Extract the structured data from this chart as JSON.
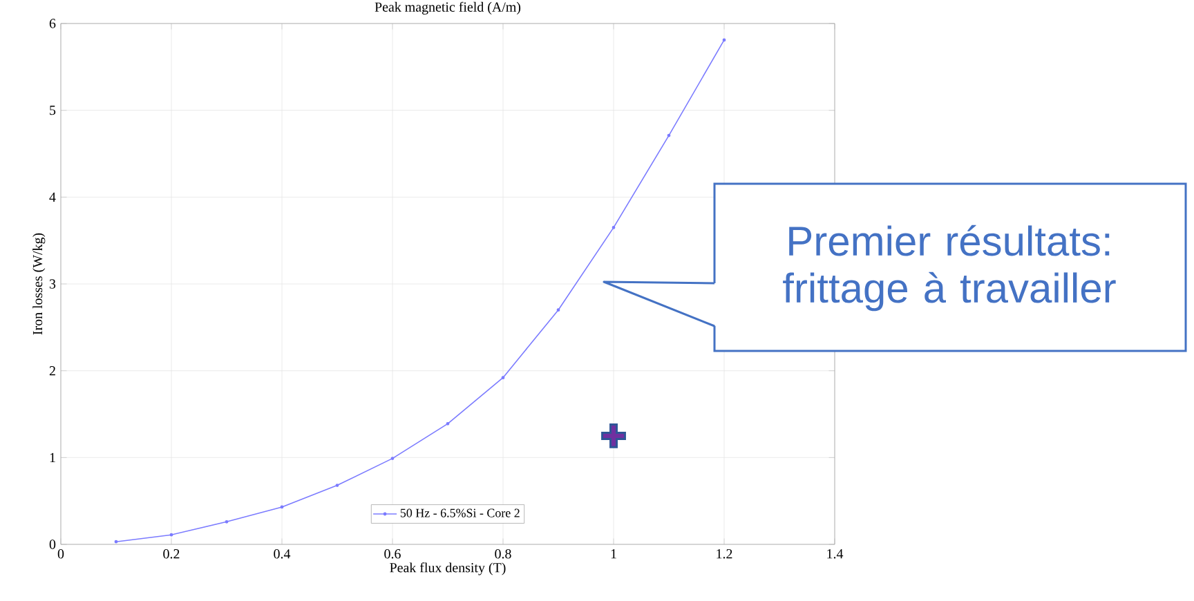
{
  "chart_data": {
    "type": "line",
    "title": "Peak magnetic field (A/m)",
    "xlabel": "Peak flux density (T)",
    "ylabel": "Iron losses (W/kg)",
    "xlim": [
      0,
      1.4
    ],
    "ylim": [
      0,
      6
    ],
    "xticks": [
      0,
      0.2,
      0.4,
      0.6,
      0.8,
      1,
      1.2,
      1.4
    ],
    "yticks": [
      0,
      1,
      2,
      3,
      4,
      5,
      6
    ],
    "grid": true,
    "legend": "bottom",
    "marker": "circle",
    "series": [
      {
        "name": "50 Hz - 6.5%Si - Core 2",
        "color": "#7b7bff",
        "x": [
          0.1,
          0.2,
          0.3,
          0.4,
          0.5,
          0.6,
          0.7,
          0.8,
          0.9,
          1.0,
          1.1,
          1.2
        ],
        "values": [
          0.03,
          0.11,
          0.26,
          0.43,
          0.68,
          0.99,
          1.39,
          1.92,
          2.7,
          3.65,
          4.71,
          5.81
        ]
      },
      {
        "type": "scatter",
        "marker": "cross",
        "color": "#7030a0",
        "x": [
          1.0
        ],
        "values": [
          1.25
        ]
      }
    ],
    "annotations": [
      "Premier résultats: frittage à travailler"
    ]
  }
}
